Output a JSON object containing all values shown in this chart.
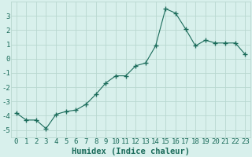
{
  "x": [
    0,
    1,
    2,
    3,
    4,
    5,
    6,
    7,
    8,
    9,
    10,
    11,
    12,
    13,
    14,
    15,
    16,
    17,
    18,
    19,
    20,
    21,
    22,
    23
  ],
  "y": [
    -3.8,
    -4.3,
    -4.3,
    -4.9,
    -3.9,
    -3.7,
    -3.6,
    -3.2,
    -2.5,
    -1.7,
    -1.2,
    -1.2,
    -0.5,
    -0.3,
    0.9,
    3.5,
    3.2,
    2.1,
    0.9,
    1.3,
    1.1,
    1.1,
    1.1,
    0.3
  ],
  "line_color": "#1a6b5a",
  "marker": "+",
  "marker_size": 4,
  "bg_color": "#d8f0ec",
  "grid_color": "#b8d8d0",
  "xlabel": "Humidex (Indice chaleur)",
  "xlim": [
    -0.5,
    23.5
  ],
  "ylim": [
    -5.5,
    4.0
  ],
  "yticks": [
    -5,
    -4,
    -3,
    -2,
    -1,
    0,
    1,
    2,
    3
  ],
  "xticks": [
    0,
    1,
    2,
    3,
    4,
    5,
    6,
    7,
    8,
    9,
    10,
    11,
    12,
    13,
    14,
    15,
    16,
    17,
    18,
    19,
    20,
    21,
    22,
    23
  ],
  "tick_labelsize": 6.5,
  "xlabel_fontsize": 7.5,
  "label_color": "#1a6b5a"
}
